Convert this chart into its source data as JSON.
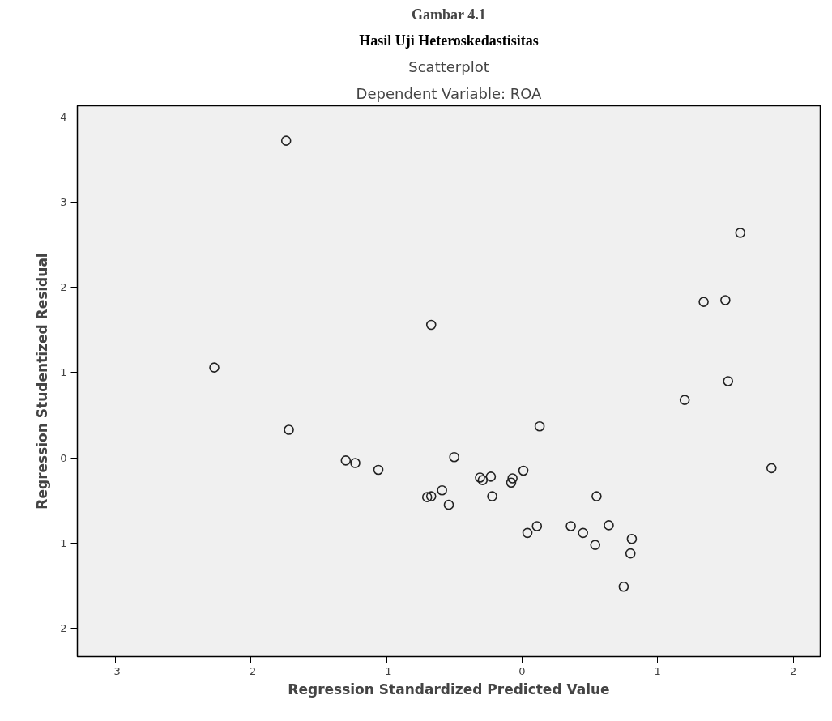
{
  "chart_data": {
    "type": "scatter",
    "title": "Gambar 4.1",
    "subtitle": "Hasil Uji Heteroskedastisitas",
    "annotations": [
      "Scatterplot",
      "Dependent Variable: ROA"
    ],
    "xlabel": "Regression Standardized Predicted Value",
    "ylabel": "Regression Studentized Residual",
    "x": [
      -1.74,
      -2.27,
      -1.72,
      -1.3,
      -1.23,
      -1.06,
      1.61,
      1.34,
      1.5,
      -0.67,
      1.52,
      1.2,
      0.13,
      1.84,
      -0.5,
      -0.31,
      -0.29,
      -0.23,
      -0.07,
      -0.08,
      0.01,
      -0.7,
      -0.67,
      -0.59,
      -0.54,
      -0.22,
      0.55,
      0.04,
      0.11,
      0.36,
      0.45,
      0.64,
      0.54,
      0.81,
      0.8,
      0.75
    ],
    "values": [
      3.72,
      1.06,
      0.33,
      -0.03,
      -0.06,
      -0.14,
      2.64,
      1.83,
      1.85,
      1.56,
      0.9,
      0.68,
      0.37,
      -0.12,
      0.01,
      -0.23,
      -0.26,
      -0.22,
      -0.24,
      -0.29,
      -0.15,
      -0.46,
      -0.45,
      -0.38,
      -0.55,
      -0.45,
      -0.45,
      -0.88,
      -0.8,
      -0.8,
      -0.88,
      -0.79,
      -1.02,
      -0.95,
      -1.12,
      -1.51
    ],
    "color": "#222222",
    "marker": "circle",
    "xlim": [
      -3.28,
      2.2
    ],
    "ylim": [
      -2.33,
      4.13
    ],
    "xticks": [
      -3,
      -2,
      -1,
      0,
      1,
      2
    ],
    "yticks": [
      -2,
      -1,
      0,
      1,
      2,
      3,
      4
    ],
    "grid": false
  }
}
